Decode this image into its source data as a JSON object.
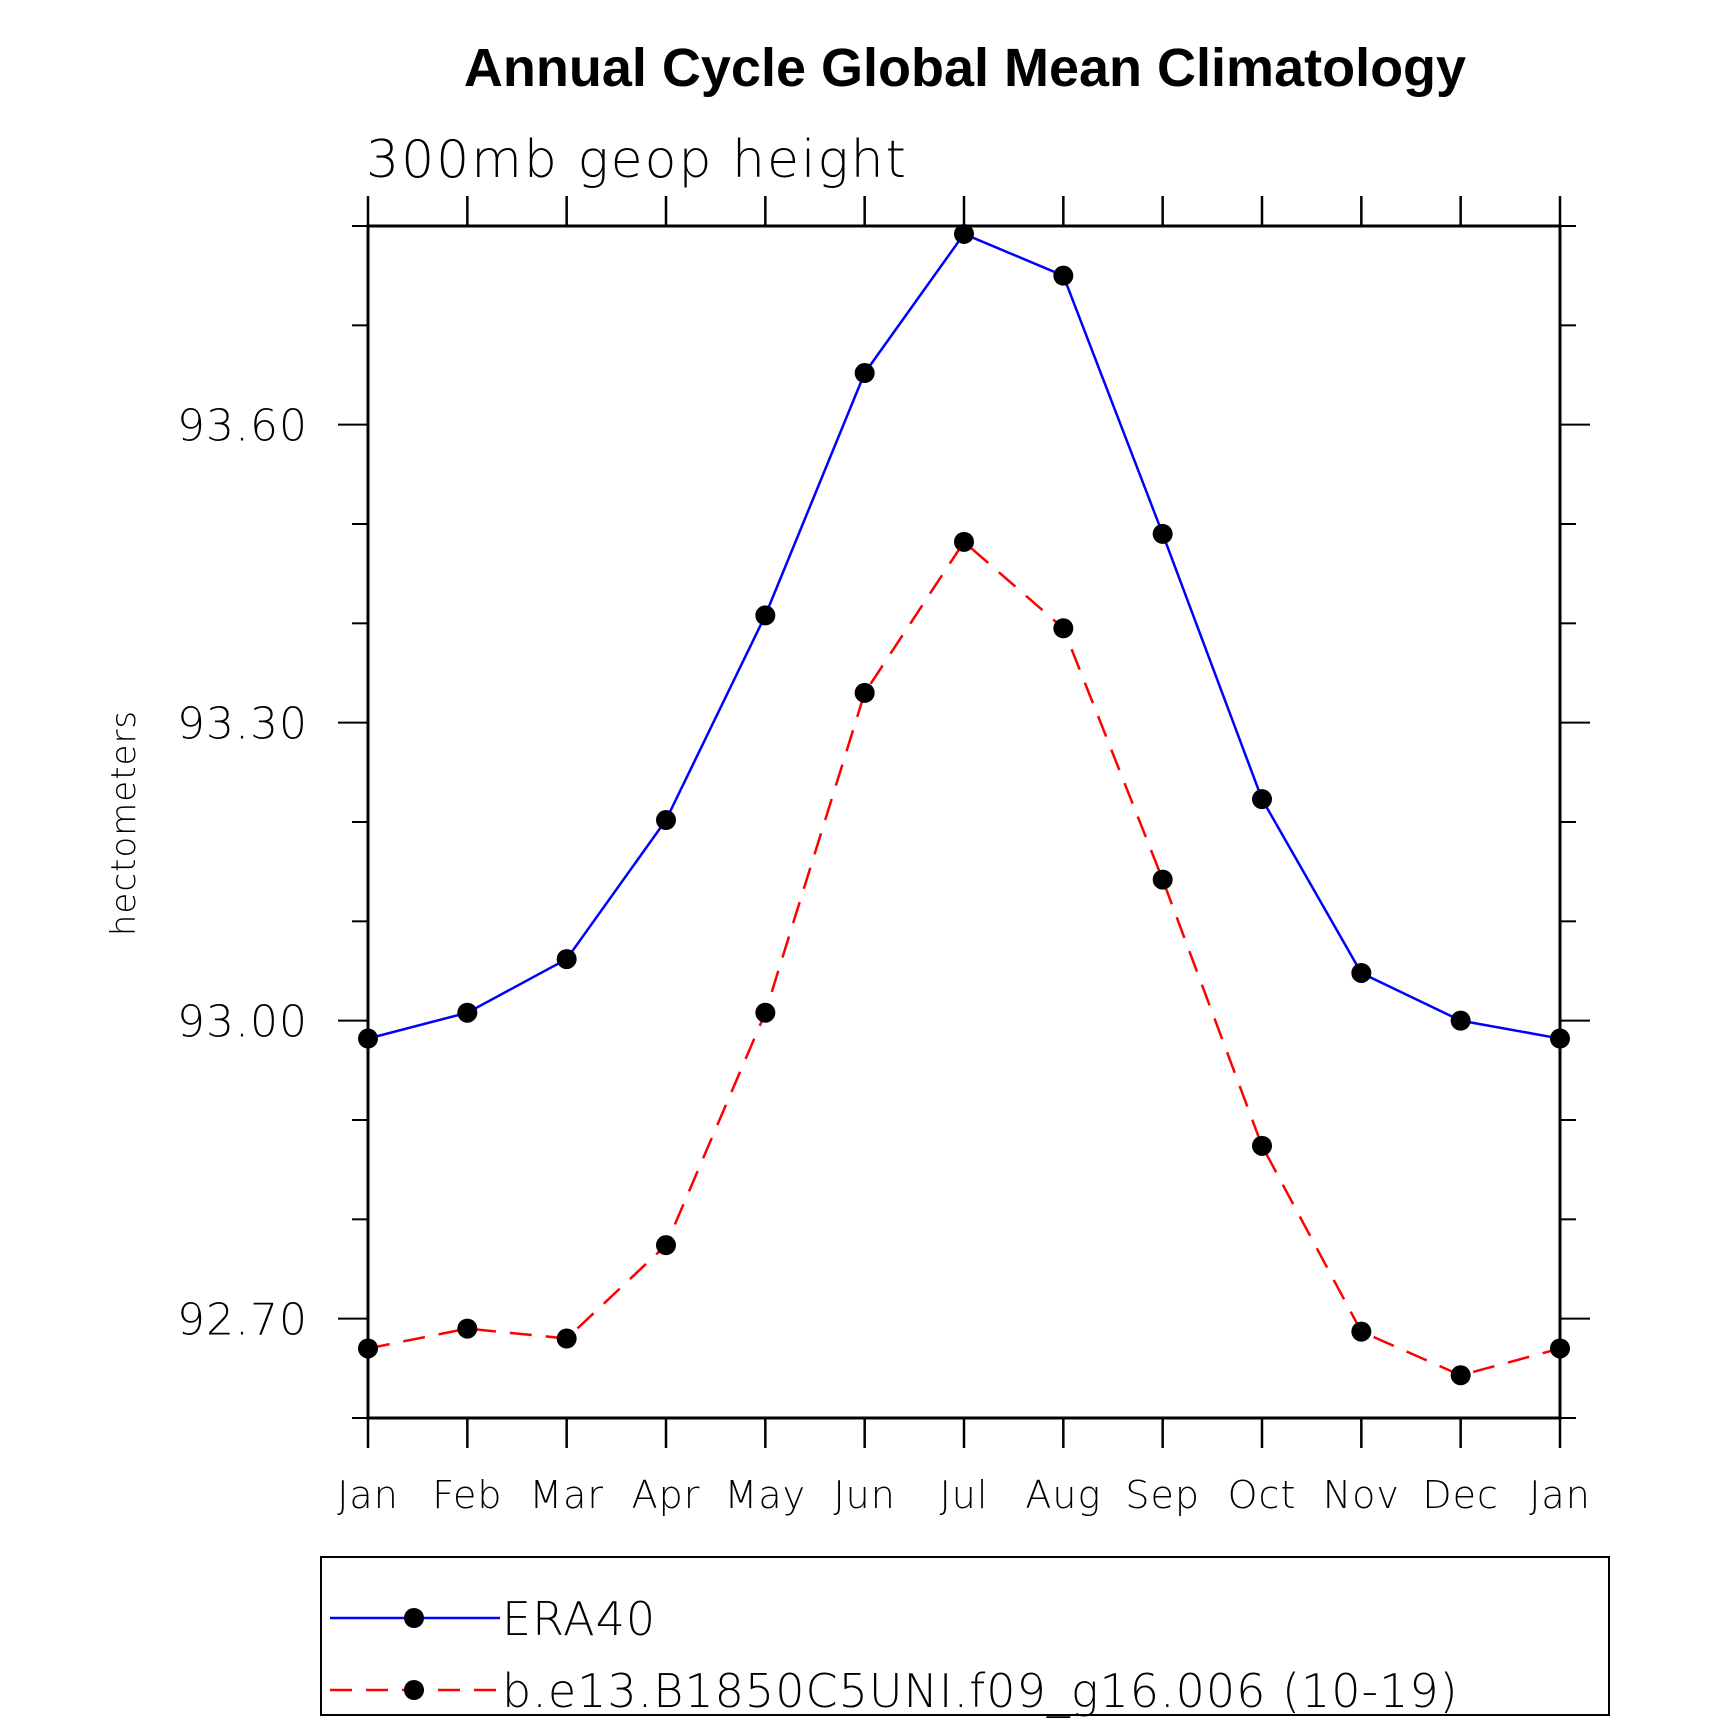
{
  "chart_data": {
    "type": "line",
    "title": "Annual Cycle Global Mean Climatology",
    "subtitle": "300mb geop height",
    "xlabel": "",
    "ylabel": "hectometers",
    "categories": [
      "Jan",
      "Feb",
      "Mar",
      "Apr",
      "May",
      "Jun",
      "Jul",
      "Aug",
      "Sep",
      "Oct",
      "Nov",
      "Dec",
      "Jan"
    ],
    "ylim": [
      92.6,
      93.8
    ],
    "yticks": [
      92.7,
      93.0,
      93.3,
      93.6
    ],
    "ytick_labels": [
      "92.70",
      "93.00",
      "93.30",
      "93.60"
    ],
    "grid": false,
    "legend_position": "bottom",
    "series": [
      {
        "name": "ERA40",
        "color": "#0000ff",
        "line_style": "solid",
        "marker": "filled-circle",
        "values": [
          92.982,
          93.008,
          93.062,
          93.202,
          93.408,
          93.652,
          93.792,
          93.75,
          93.49,
          93.223,
          93.048,
          93.0,
          92.982
        ]
      },
      {
        "name": "b.e13.B1850C5UNI.f09_g16.006 (10-19)",
        "color": "#ff0000",
        "line_style": "dashed",
        "marker": "filled-circle",
        "values": [
          92.67,
          92.69,
          92.68,
          92.774,
          93.008,
          93.33,
          93.482,
          93.395,
          93.142,
          92.874,
          92.687,
          92.643,
          92.67
        ]
      }
    ]
  }
}
